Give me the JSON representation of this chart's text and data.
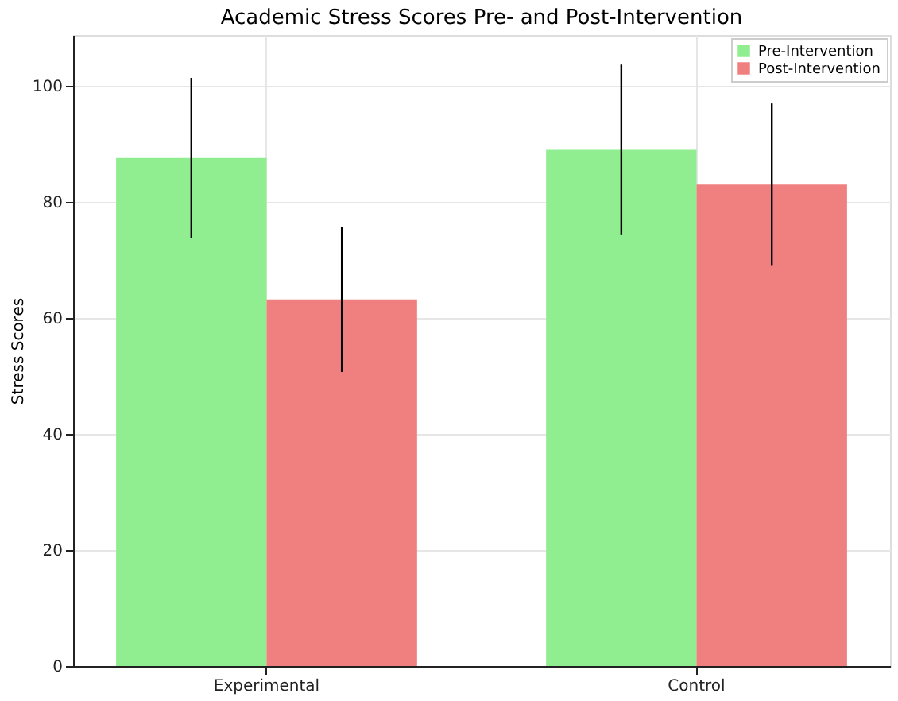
{
  "chart_data": {
    "type": "bar",
    "title": "Academic Stress Scores Pre- and Post-Intervention",
    "ylabel": "Stress Scores",
    "categories": [
      "Experimental",
      "Control"
    ],
    "series": [
      {
        "name": "Pre-Intervention",
        "color": "#90ee90",
        "values": [
          87.6,
          89.0
        ],
        "errors": [
          13.8,
          14.7
        ]
      },
      {
        "name": "Post-Intervention",
        "color": "#f08080",
        "values": [
          63.2,
          83.0
        ],
        "errors": [
          12.5,
          14.0
        ]
      }
    ],
    "ylim": [
      0,
      108.8
    ],
    "yticks": [
      0,
      20,
      40,
      60,
      80,
      100
    ],
    "grid": true,
    "legend": "top right"
  }
}
